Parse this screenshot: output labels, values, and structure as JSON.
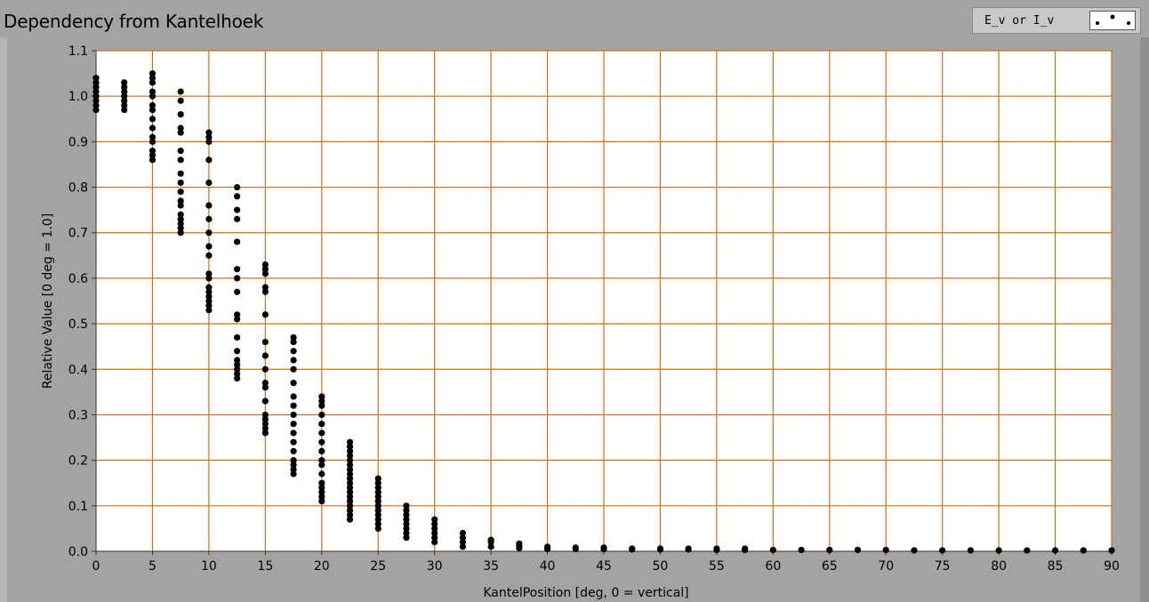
{
  "window": {
    "title": "Dependency from Kantelhoek"
  },
  "legend": {
    "label": "E_v or I_v",
    "marker": "black-dot"
  },
  "colors": {
    "panel": "#a3a3a3",
    "plot_background": "#ffffff",
    "grid": "#d2700f",
    "points": "#000000"
  },
  "chart_data": {
    "type": "scatter",
    "title": "Dependency from Kantelhoek",
    "xlabel": "KantelPosition [deg, 0 = vertical]",
    "ylabel": "Relative Value [0 deg = 1.0]",
    "xlim": [
      0,
      90
    ],
    "ylim": [
      0.0,
      1.1
    ],
    "xticks": [
      0,
      5,
      10,
      15,
      20,
      25,
      30,
      35,
      40,
      45,
      50,
      55,
      60,
      65,
      70,
      75,
      80,
      85,
      90
    ],
    "yticks": [
      "0.0",
      "0.1",
      "0.2",
      "0.3",
      "0.4",
      "0.5",
      "0.6",
      "0.7",
      "0.8",
      "0.9",
      "1.0",
      "1.1"
    ],
    "grid": true,
    "legend_position": "top-right",
    "series": [
      {
        "name": "E_v or I_v",
        "points": [
          {
            "x": 0,
            "y": [
              0.97,
              0.98,
              0.99,
              1.0,
              1.01,
              1.02,
              1.03,
              1.04
            ]
          },
          {
            "x": 2.5,
            "y": [
              0.97,
              0.98,
              0.99,
              1.0,
              1.01,
              1.02,
              1.03
            ]
          },
          {
            "x": 5,
            "y": [
              0.86,
              0.87,
              0.88,
              0.9,
              0.91,
              0.93,
              0.95,
              0.97,
              0.98,
              1.0,
              1.01,
              1.03,
              1.04,
              1.05
            ]
          },
          {
            "x": 7.5,
            "y": [
              0.7,
              0.71,
              0.72,
              0.73,
              0.74,
              0.76,
              0.77,
              0.79,
              0.81,
              0.83,
              0.86,
              0.88,
              0.92,
              0.93,
              0.96,
              0.99,
              1.01
            ]
          },
          {
            "x": 10,
            "y": [
              0.53,
              0.54,
              0.55,
              0.56,
              0.57,
              0.58,
              0.6,
              0.61,
              0.65,
              0.67,
              0.7,
              0.73,
              0.76,
              0.81,
              0.86,
              0.9,
              0.91,
              0.92
            ]
          },
          {
            "x": 12.5,
            "y": [
              0.38,
              0.39,
              0.4,
              0.41,
              0.42,
              0.44,
              0.47,
              0.51,
              0.52,
              0.57,
              0.6,
              0.62,
              0.68,
              0.73,
              0.75,
              0.78,
              0.8
            ]
          },
          {
            "x": 15,
            "y": [
              0.26,
              0.27,
              0.28,
              0.29,
              0.3,
              0.33,
              0.36,
              0.37,
              0.4,
              0.43,
              0.46,
              0.52,
              0.57,
              0.58,
              0.61,
              0.62,
              0.63
            ]
          },
          {
            "x": 17.5,
            "y": [
              0.17,
              0.18,
              0.19,
              0.2,
              0.22,
              0.24,
              0.26,
              0.28,
              0.3,
              0.32,
              0.34,
              0.37,
              0.4,
              0.42,
              0.44,
              0.46,
              0.47
            ]
          },
          {
            "x": 20,
            "y": [
              0.11,
              0.12,
              0.13,
              0.14,
              0.15,
              0.17,
              0.19,
              0.2,
              0.22,
              0.24,
              0.26,
              0.28,
              0.3,
              0.32,
              0.33,
              0.34
            ]
          },
          {
            "x": 22.5,
            "y": [
              0.07,
              0.08,
              0.09,
              0.1,
              0.11,
              0.12,
              0.13,
              0.14,
              0.15,
              0.16,
              0.17,
              0.18,
              0.19,
              0.2,
              0.21,
              0.22,
              0.23,
              0.24
            ]
          },
          {
            "x": 25,
            "y": [
              0.05,
              0.06,
              0.07,
              0.08,
              0.09,
              0.1,
              0.11,
              0.12,
              0.13,
              0.14,
              0.15,
              0.16
            ]
          },
          {
            "x": 27.5,
            "y": [
              0.03,
              0.04,
              0.05,
              0.06,
              0.07,
              0.08,
              0.09,
              0.1
            ]
          },
          {
            "x": 30,
            "y": [
              0.02,
              0.03,
              0.04,
              0.05,
              0.06,
              0.07
            ]
          },
          {
            "x": 32.5,
            "y": [
              0.01,
              0.02,
              0.03,
              0.04
            ]
          },
          {
            "x": 35,
            "y": [
              0.01,
              0.02,
              0.025
            ]
          },
          {
            "x": 37.5,
            "y": [
              0.007,
              0.012,
              0.017
            ]
          },
          {
            "x": 40,
            "y": [
              0.005,
              0.01
            ]
          },
          {
            "x": 42.5,
            "y": [
              0.005,
              0.008
            ]
          },
          {
            "x": 45,
            "y": [
              0.005,
              0.008
            ]
          },
          {
            "x": 47.5,
            "y": [
              0.004,
              0.006
            ]
          },
          {
            "x": 50,
            "y": [
              0.004,
              0.006
            ]
          },
          {
            "x": 52.5,
            "y": [
              0.004,
              0.006
            ]
          },
          {
            "x": 55,
            "y": [
              0.003,
              0.006
            ]
          },
          {
            "x": 57.5,
            "y": [
              0.003,
              0.006
            ]
          },
          {
            "x": 60,
            "y": [
              0.003
            ]
          },
          {
            "x": 62.5,
            "y": [
              0.003
            ]
          },
          {
            "x": 65,
            "y": [
              0.003
            ]
          },
          {
            "x": 67.5,
            "y": [
              0.003
            ]
          },
          {
            "x": 70,
            "y": [
              0.003
            ]
          },
          {
            "x": 72.5,
            "y": [
              0.002
            ]
          },
          {
            "x": 75,
            "y": [
              0.002
            ]
          },
          {
            "x": 77.5,
            "y": [
              0.002
            ]
          },
          {
            "x": 80,
            "y": [
              0.002
            ]
          },
          {
            "x": 82.5,
            "y": [
              0.002
            ]
          },
          {
            "x": 85,
            "y": [
              0.002
            ]
          },
          {
            "x": 87.5,
            "y": [
              0.002
            ]
          },
          {
            "x": 90,
            "y": [
              0.002
            ]
          }
        ]
      }
    ]
  }
}
